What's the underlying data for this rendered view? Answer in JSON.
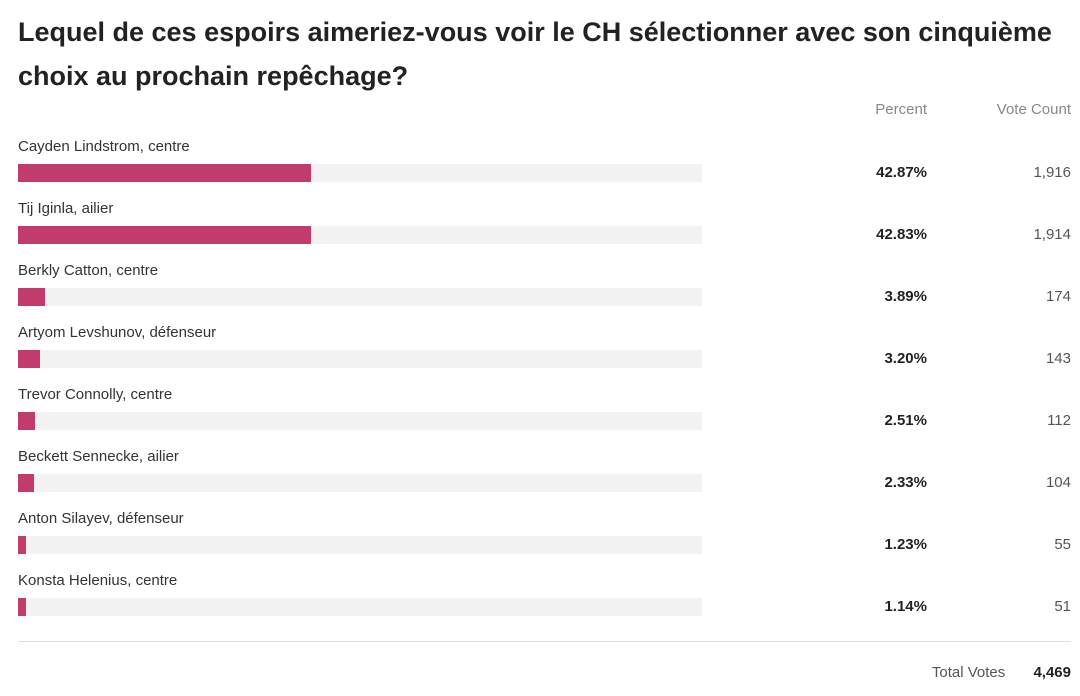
{
  "poll": {
    "title": "Lequel de ces espoirs aimeriez-vous voir le CH sélectionner avec son cinquième choix au prochain repêchage?",
    "percent_header": "Percent",
    "votes_header": "Vote Count",
    "bar_color": "#c23b6d",
    "track_color": "#f2f2f2",
    "options": [
      {
        "label": "Cayden Lindstrom, centre",
        "percent": "42.87%",
        "fraction": 0.4287,
        "count": "1,916"
      },
      {
        "label": "Tij Iginla, ailier",
        "percent": "42.83%",
        "fraction": 0.4283,
        "count": "1,914"
      },
      {
        "label": "Berkly Catton, centre",
        "percent": "3.89%",
        "fraction": 0.0389,
        "count": "174"
      },
      {
        "label": "Artyom Levshunov, défenseur",
        "percent": "3.20%",
        "fraction": 0.032,
        "count": "143"
      },
      {
        "label": "Trevor Connolly, centre",
        "percent": "2.51%",
        "fraction": 0.0251,
        "count": "112"
      },
      {
        "label": "Beckett Sennecke, ailier",
        "percent": "2.33%",
        "fraction": 0.0233,
        "count": "104"
      },
      {
        "label": "Anton Silayev, défenseur",
        "percent": "1.23%",
        "fraction": 0.0123,
        "count": "55"
      },
      {
        "label": "Konsta Helenius, centre",
        "percent": "1.14%",
        "fraction": 0.0114,
        "count": "51"
      }
    ],
    "total_label": "Total Votes",
    "total_value": "4,469"
  }
}
